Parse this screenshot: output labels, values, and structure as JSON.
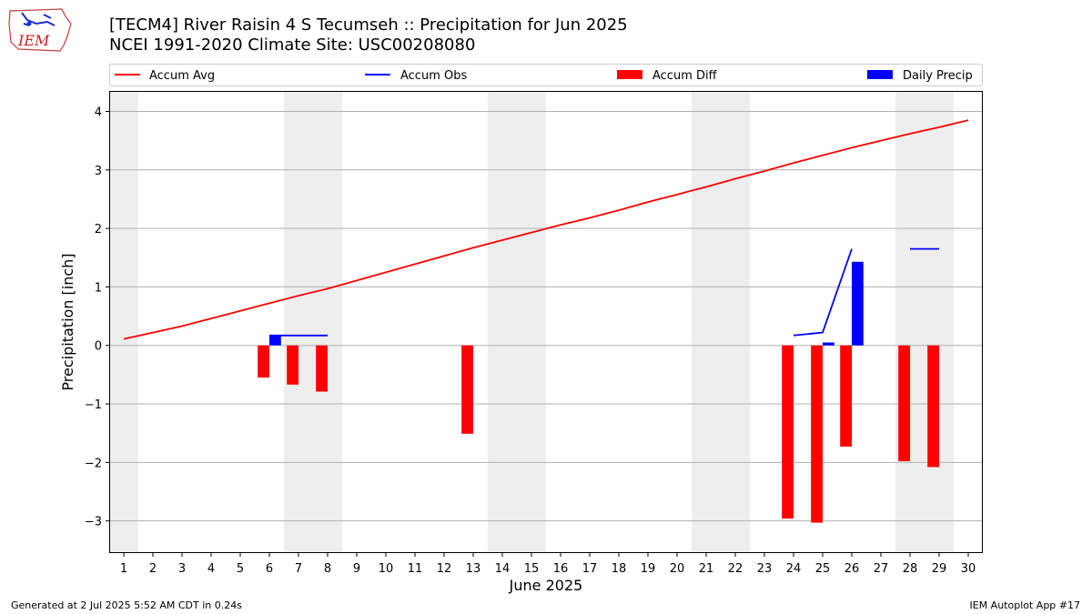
{
  "title_line1": "[TECM4] River Raisin 4 S Tecumseh :: Precipitation for Jun 2025",
  "title_line2": "NCEI 1991-2020 Climate Site: USC00208080",
  "logo_text": "IEM",
  "footer_left": "Generated at 2 Jul 2025 5:52 AM CDT in 0.24s",
  "footer_right": "IEM Autoplot App #17",
  "colors": {
    "avg": "#ff0000",
    "obs": "#0000ff",
    "diff": "#ff0000",
    "daily": "#0000ff",
    "weekend": "#eeeeee",
    "grid": "#b0b0b0"
  },
  "chart_data": {
    "type": "bar",
    "xlabel": "June 2025",
    "ylabel": "Precipitation [inch]",
    "xlim": [
      0.5,
      30.5
    ],
    "ylim": [
      -3.55,
      4.35
    ],
    "xticks": [
      1,
      2,
      3,
      4,
      5,
      6,
      7,
      8,
      9,
      10,
      11,
      12,
      13,
      14,
      15,
      16,
      17,
      18,
      19,
      20,
      21,
      22,
      23,
      24,
      25,
      26,
      27,
      28,
      29,
      30
    ],
    "yticks": [
      -3,
      -2,
      -1,
      0,
      1,
      2,
      3,
      4
    ],
    "grid": "horizontal",
    "legend_position": "top",
    "weekend_bands": [
      [
        0.5,
        1.5
      ],
      [
        6.5,
        8.5
      ],
      [
        13.5,
        15.5
      ],
      [
        20.5,
        22.5
      ],
      [
        27.5,
        29.5
      ]
    ],
    "series": [
      {
        "name": "Accum Avg",
        "type": "line",
        "x": [
          1,
          2,
          3,
          4,
          5,
          6,
          7,
          8,
          9,
          10,
          11,
          12,
          13,
          14,
          15,
          16,
          17,
          18,
          19,
          20,
          21,
          22,
          23,
          24,
          25,
          26,
          27,
          28,
          29,
          30
        ],
        "values": [
          0.11,
          0.22,
          0.33,
          0.46,
          0.59,
          0.72,
          0.85,
          0.97,
          1.11,
          1.25,
          1.39,
          1.53,
          1.67,
          1.8,
          1.93,
          2.06,
          2.18,
          2.31,
          2.45,
          2.58,
          2.71,
          2.85,
          2.98,
          3.12,
          3.25,
          3.38,
          3.5,
          3.62,
          3.73,
          3.85
        ]
      },
      {
        "name": "Accum Obs",
        "type": "line",
        "segments": [
          {
            "x": [
              6,
              7,
              8
            ],
            "values": [
              0.17,
              0.17,
              0.17
            ]
          },
          {
            "x": [
              24,
              25,
              26
            ],
            "values": [
              0.17,
              0.22,
              1.65
            ]
          },
          {
            "x": [
              28,
              29
            ],
            "values": [
              1.65,
              1.65
            ]
          }
        ]
      },
      {
        "name": "Accum Diff",
        "type": "bar",
        "x": [
          6,
          7,
          8,
          13,
          24,
          25,
          26,
          28,
          29
        ],
        "values": [
          -0.55,
          -0.67,
          -0.79,
          -1.51,
          -2.96,
          -3.03,
          -1.73,
          -1.98,
          -2.08
        ]
      },
      {
        "name": "Daily Precip",
        "type": "bar",
        "x": [
          6,
          25,
          26
        ],
        "values": [
          0.17,
          0.05,
          1.43
        ]
      }
    ]
  }
}
